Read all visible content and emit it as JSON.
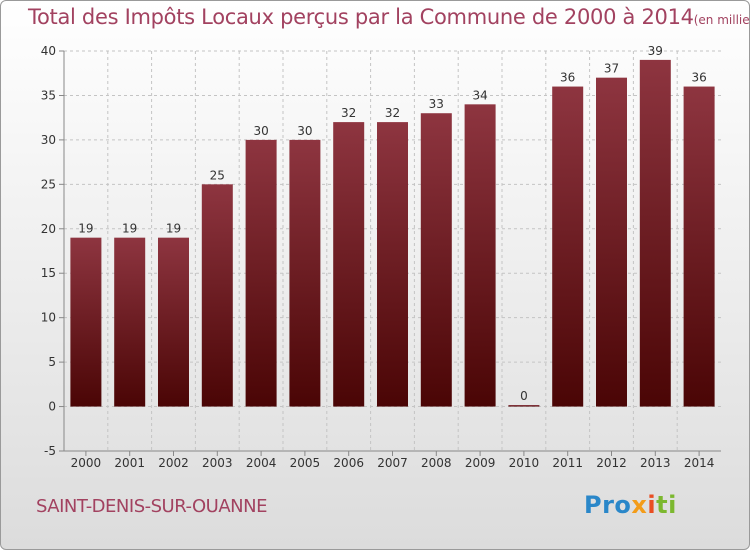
{
  "title": "Total des Impôts Locaux perçus par la Commune de 2000 à 2014",
  "title_unit": "(en milliers d'€)",
  "commune": "SAINT-DENIS-SUR-OUANNE",
  "logo": {
    "p1": "Pro",
    "p2": "x",
    "p3": "i",
    "p4": "ti"
  },
  "colors": {
    "bar_top": "#8e3540",
    "bar_bottom": "#4a0505",
    "title": "#a24260"
  },
  "chart_data": {
    "type": "bar",
    "title": "Total des Impôts Locaux perçus par la Commune de 2000 à 2014",
    "subtitle": "(en milliers d'€)",
    "xlabel": "",
    "ylabel": "",
    "categories": [
      "2000",
      "2001",
      "2002",
      "2003",
      "2004",
      "2005",
      "2006",
      "2007",
      "2008",
      "2009",
      "2010",
      "2011",
      "2012",
      "2013",
      "2014"
    ],
    "values": [
      19,
      19,
      19,
      25,
      30,
      30,
      32,
      32,
      33,
      34,
      0,
      36,
      37,
      39,
      36
    ],
    "ylim": [
      -5,
      40
    ],
    "yticks": [
      -5,
      0,
      5,
      10,
      15,
      20,
      25,
      30,
      35,
      40
    ],
    "grid": true,
    "legend": "none"
  }
}
